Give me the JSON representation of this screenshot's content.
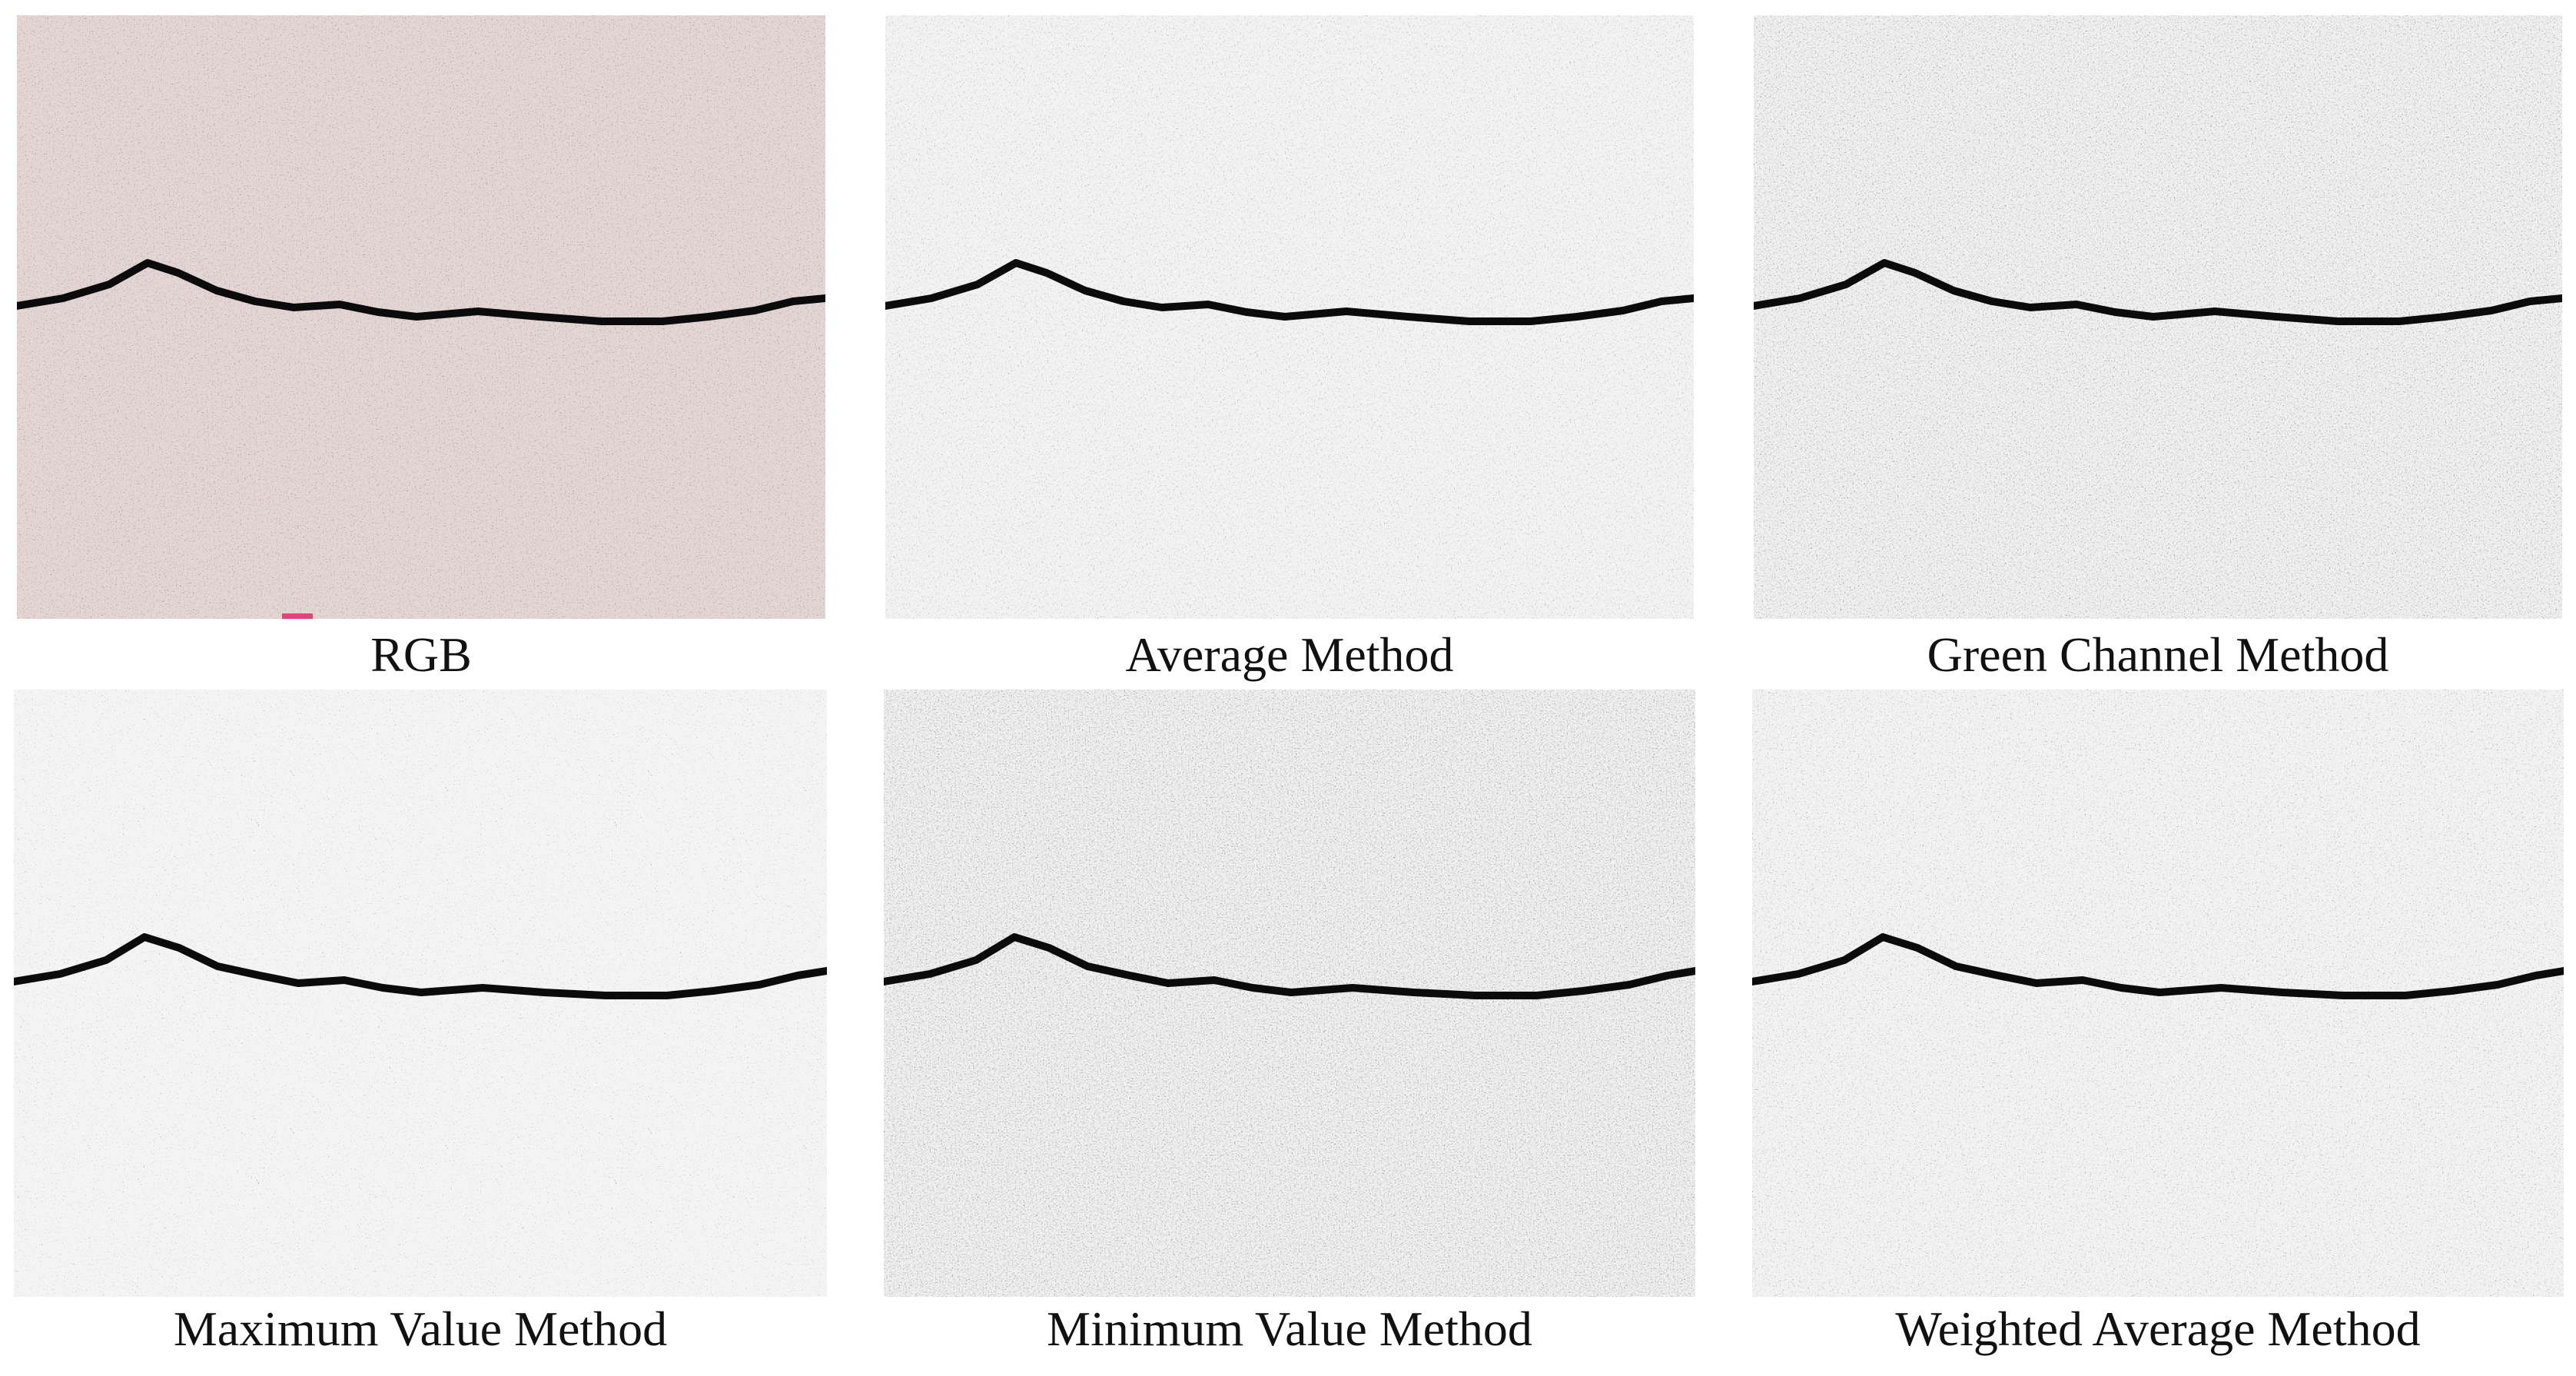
{
  "panels": [
    {
      "caption": "RGB",
      "tone": "color"
    },
    {
      "caption": "Average Method",
      "tone": "gray"
    },
    {
      "caption": "Green Channel Method",
      "tone": "gray-dark"
    },
    {
      "caption": "Maximum Value Method",
      "tone": "gray-light"
    },
    {
      "caption": "Minimum Value Method",
      "tone": "gray-dark"
    },
    {
      "caption": "Weighted Average Method",
      "tone": "gray"
    }
  ],
  "colors": {
    "background": "#ffffff",
    "caption_text": "#111111",
    "rgb_base": "#8f8480",
    "gray_base": "#8a8a8a",
    "crack": "#0b0b0b",
    "marker_pink": "#e0457a"
  }
}
